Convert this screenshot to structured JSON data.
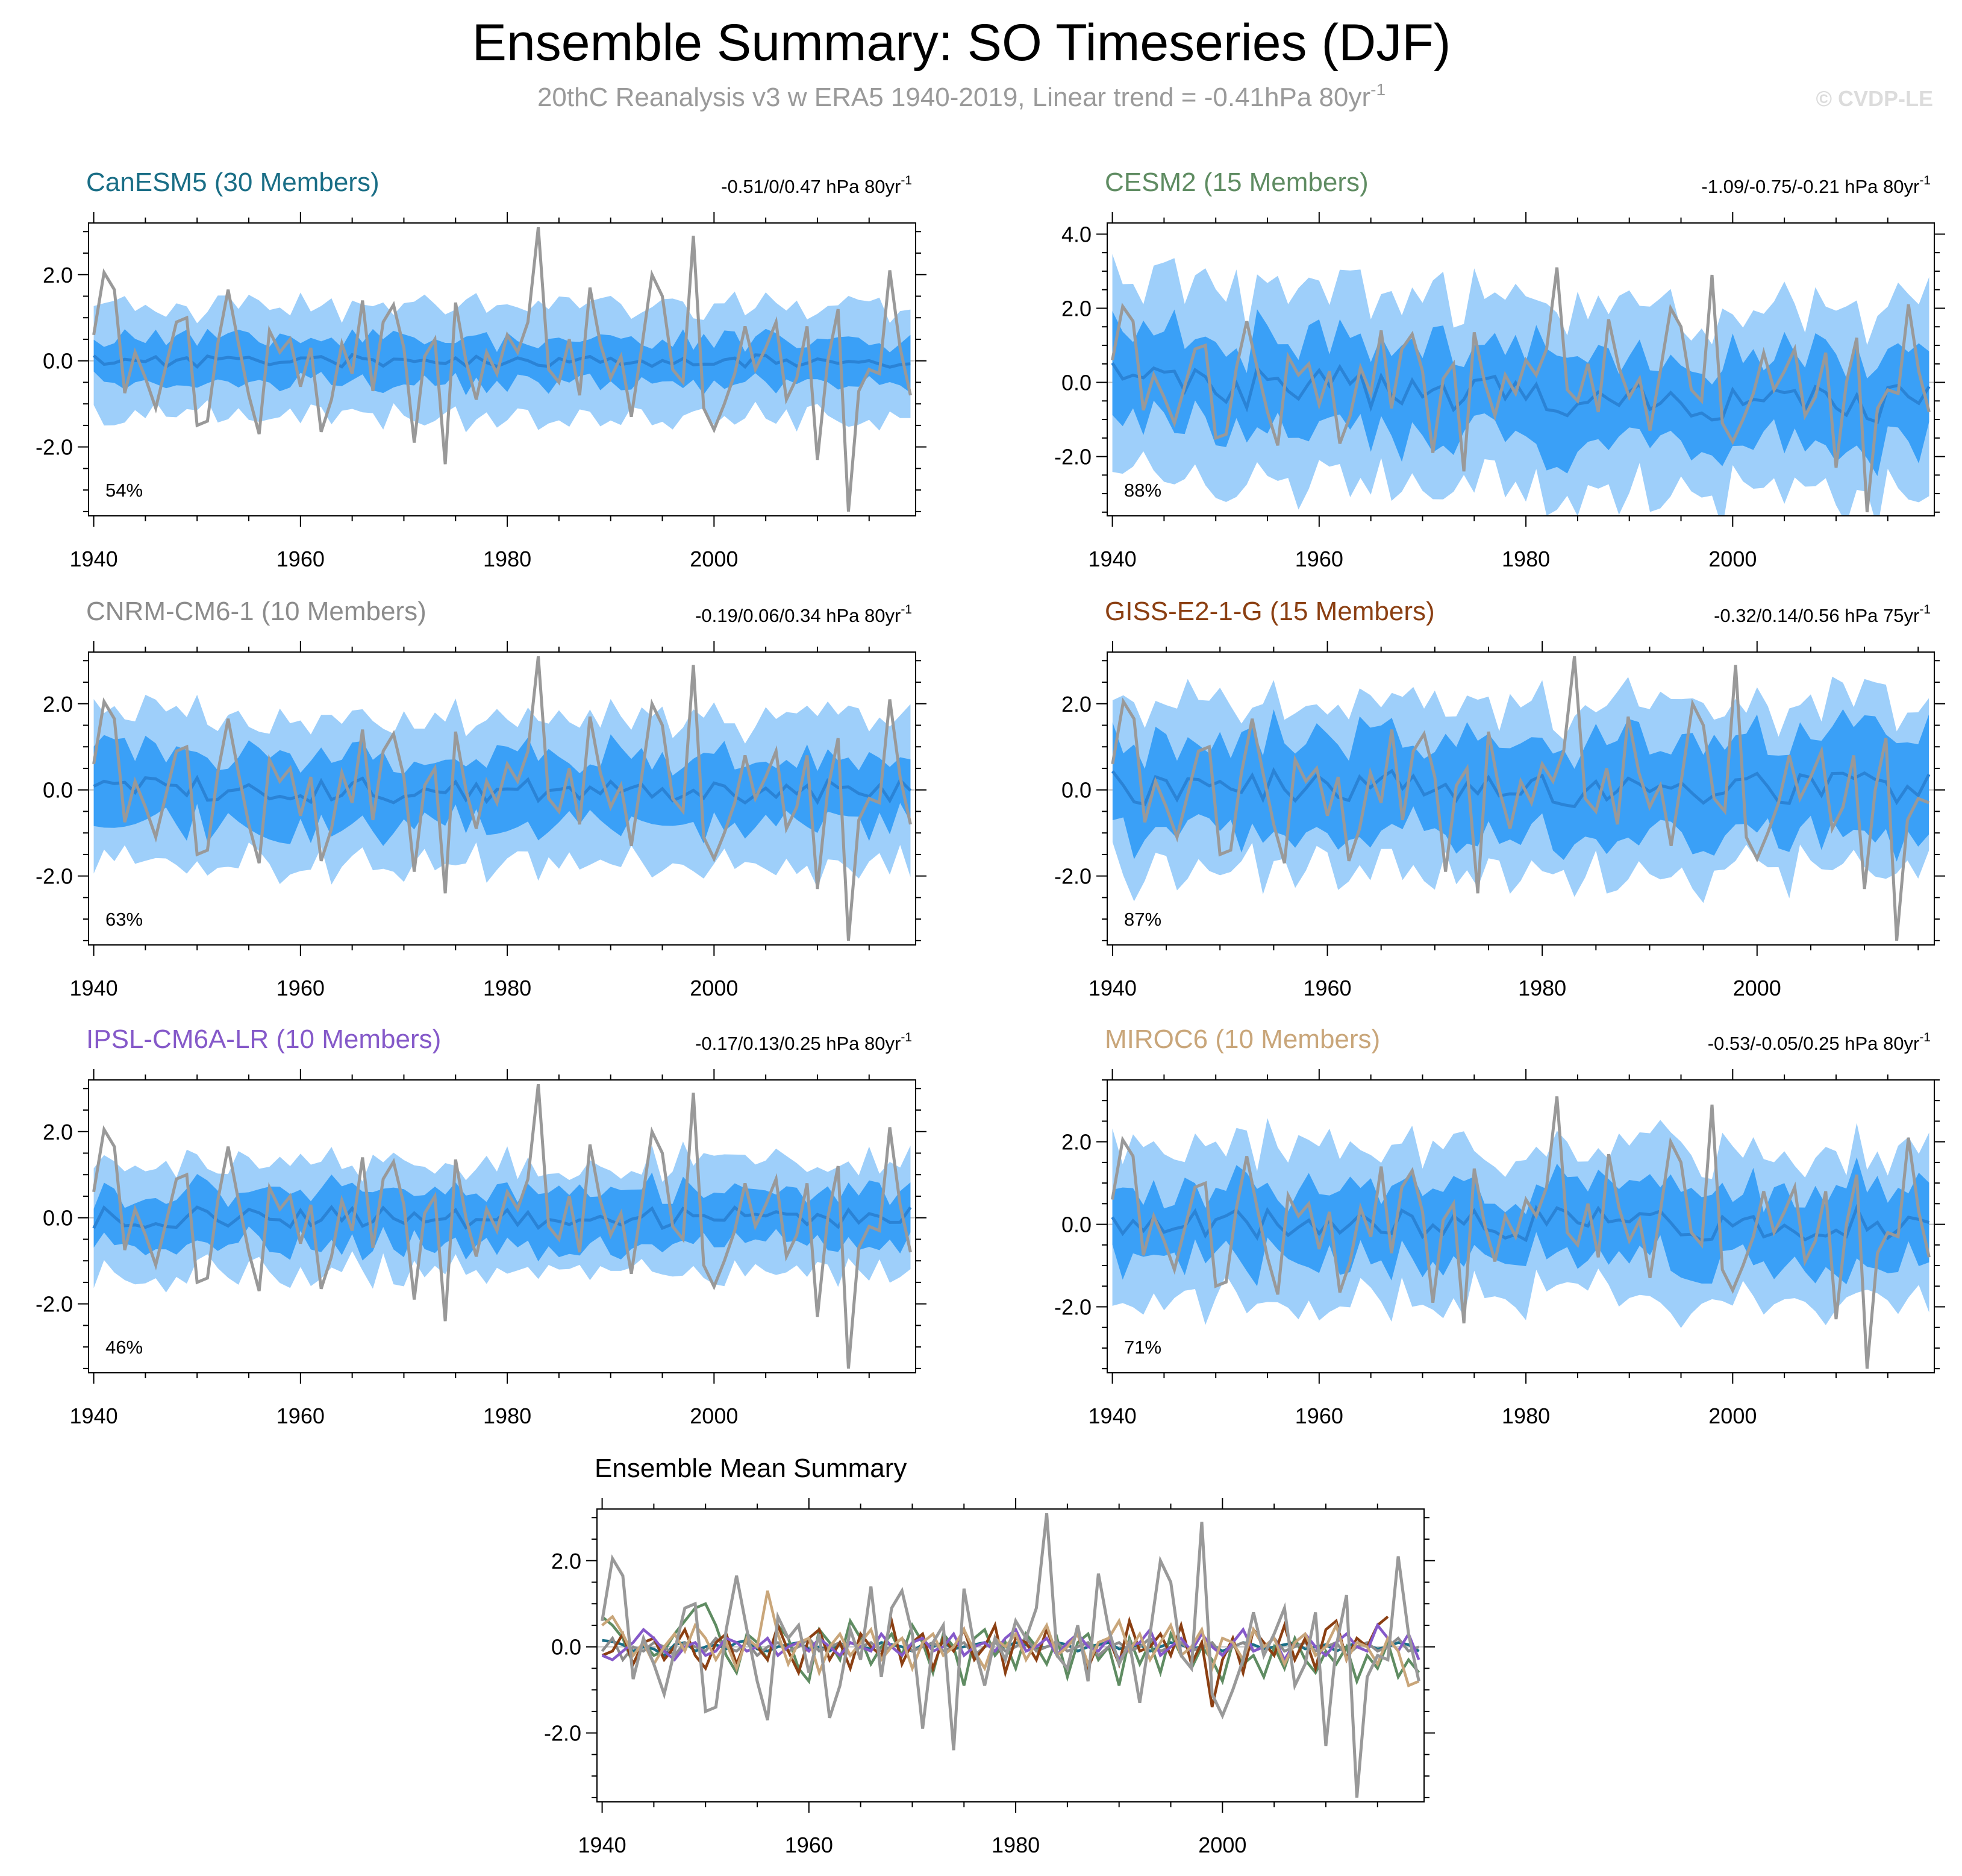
{
  "title": "Ensemble Summary: SO Timeseries (DJF)",
  "subtitle": "20thC Reanalysis v3 w ERA5 1940-2019, Linear trend = -0.41hPa 80yr",
  "subtitle_sup": "-1",
  "watermark": "© CVDP-LE",
  "colors": {
    "band_outer": "#9ecffa",
    "band_inner": "#3aa0f7",
    "mean_line": "#2a83d6",
    "obs_line": "#999999",
    "zero_line": "#c0c0c0"
  },
  "chart_data": [
    {
      "id": "canesm5",
      "type": "area",
      "title": "CanESM5 (30 Members)",
      "title_color": "#1a6e86",
      "trend": "-0.51/0/0.47 hPa 80yr",
      "trend_sup": "-1",
      "percent": "54%",
      "xlim": [
        1939.5,
        2019.5
      ],
      "ylim": [
        -3.6,
        3.2
      ],
      "ticks": [
        -2.0,
        0.0,
        2.0
      ],
      "xticks": [
        1940,
        1960,
        1980,
        2000
      ],
      "spread": [
        1.3,
        0.55,
        0.15
      ],
      "seed": 11
    },
    {
      "id": "cesm2",
      "type": "area",
      "title": "CESM2 (15 Members)",
      "title_color": "#5f8c62",
      "trend": "-1.09/-0.75/-0.21 hPa 80yr",
      "trend_sup": "-1",
      "percent": "88%",
      "xlim": [
        1939.5,
        2019.5
      ],
      "ylim": [
        -3.6,
        4.3
      ],
      "ticks": [
        -2.0,
        0.0,
        2.0,
        4.0
      ],
      "xticks": [
        1940,
        1960,
        1980,
        2000
      ],
      "spread": [
        2.6,
        1.3,
        0.6
      ],
      "seed": 23,
      "trend_slope": -0.0075
    },
    {
      "id": "cnrm",
      "type": "area",
      "title": "CNRM-CM6-1 (10 Members)",
      "title_color": "#8c8c8c",
      "trend": "-0.19/0.06/0.34 hPa 80yr",
      "trend_sup": "-1",
      "percent": "63%",
      "xlim": [
        1939.5,
        2019.5
      ],
      "ylim": [
        -3.6,
        3.2
      ],
      "ticks": [
        -2.0,
        0.0,
        2.0
      ],
      "xticks": [
        1940,
        1960,
        1980,
        2000
      ],
      "spread": [
        1.7,
        0.85,
        0.3
      ],
      "seed": 37
    },
    {
      "id": "giss",
      "type": "area",
      "title": "GISS-E2-1-G (15 Members)",
      "title_color": "#8b3f12",
      "trend": "-0.32/0.14/0.56 hPa 75yr",
      "trend_sup": "-1",
      "percent": "87%",
      "xlim": [
        1939.5,
        2016.5
      ],
      "ylim": [
        -3.6,
        3.2
      ],
      "ticks": [
        -2.0,
        0.0,
        2.0
      ],
      "xticks": [
        1940,
        1960,
        1980,
        2000
      ],
      "spread": [
        2.0,
        1.15,
        0.45
      ],
      "seed": 41
    },
    {
      "id": "ipsl",
      "type": "area",
      "title": "IPSL-CM6A-LR (10 Members)",
      "title_color": "#8559c9",
      "trend": "-0.17/0.13/0.25 hPa 80yr",
      "trend_sup": "-1",
      "percent": "46%",
      "xlim": [
        1939.5,
        2019.5
      ],
      "ylim": [
        -3.6,
        3.2
      ],
      "ticks": [
        -2.0,
        0.0,
        2.0
      ],
      "xticks": [
        1940,
        1960,
        1980,
        2000
      ],
      "spread": [
        1.3,
        0.65,
        0.25
      ],
      "seed": 53
    },
    {
      "id": "miroc6",
      "type": "area",
      "title": "MIROC6 (10 Members)",
      "title_color": "#c9a67a",
      "trend": "-0.53/-0.05/0.25 hPa 80yr",
      "trend_sup": "-1",
      "percent": "71%",
      "xlim": [
        1939.5,
        2019.5
      ],
      "ylim": [
        -3.6,
        3.5
      ],
      "ticks": [
        -2.0,
        0.0,
        2.0
      ],
      "xticks": [
        1940,
        1960,
        1980,
        2000
      ],
      "spread": [
        1.9,
        0.95,
        0.4
      ],
      "seed": 67
    },
    {
      "id": "summary",
      "type": "line",
      "title": "Ensemble Mean Summary",
      "title_color": "#000000",
      "xlim": [
        1939.5,
        2019.5
      ],
      "ylim": [
        -3.6,
        3.2
      ],
      "ticks": [
        -2.0,
        0.0,
        2.0
      ],
      "xticks": [
        1940,
        1960,
        1980,
        2000
      ]
    }
  ],
  "obs": {
    "name": "20thC Reanalysis v3 w ERA5",
    "x_start": 1940,
    "values": [
      0.6,
      2.05,
      1.65,
      -0.75,
      0.2,
      -0.4,
      -1.1,
      -0.1,
      0.9,
      1.0,
      -1.5,
      -1.4,
      0.4,
      1.65,
      0.4,
      -0.8,
      -1.7,
      0.7,
      0.2,
      0.5,
      -0.6,
      0.3,
      -1.65,
      -0.9,
      0.4,
      -0.3,
      1.4,
      -0.7,
      0.9,
      1.3,
      0.3,
      -1.9,
      0.1,
      0.5,
      -2.4,
      1.35,
      0.0,
      -0.9,
      0.2,
      -0.3,
      0.6,
      0.2,
      0.9,
      3.1,
      -0.2,
      -0.5,
      0.5,
      -0.8,
      1.7,
      0.4,
      -0.4,
      0.1,
      -1.3,
      0.3,
      2.0,
      1.5,
      -0.2,
      -0.5,
      2.9,
      -1.1,
      -1.6,
      -1.0,
      -0.3,
      0.8,
      -0.2,
      0.3,
      0.9,
      -0.9,
      -0.4,
      0.8,
      -2.3,
      0.0,
      1.2,
      -3.5,
      -0.7,
      -0.2,
      -0.3,
      2.1,
      0.3,
      -0.8
    ]
  },
  "summary_series": [
    {
      "name": "CanESM5",
      "color": "#1a6e86",
      "values": [
        0.15,
        0.12,
        0.05,
        -0.1,
        0.0,
        -0.05,
        -0.2,
        0.05,
        0.1,
        -0.1,
        0.0,
        0.05,
        -0.05,
        0.1,
        0.15,
        -0.05,
        -0.1,
        0.0,
        0.05,
        0.1,
        -0.05,
        0.0,
        -0.1,
        0.05,
        0.1,
        0.0,
        -0.05,
        0.1,
        0.05,
        0.0,
        -0.1,
        0.05,
        0.0,
        0.1,
        -0.05,
        0.0,
        0.05,
        0.1,
        -0.1,
        0.0,
        0.1,
        0.05,
        -0.05,
        0.0,
        0.1,
        0.05,
        -0.1,
        0.0,
        0.05,
        0.1,
        -0.05,
        0.0,
        0.05,
        -0.1,
        0.0,
        0.1,
        0.05,
        -0.05,
        0.0,
        0.05,
        -0.1,
        0.0,
        0.1,
        0.05,
        -0.05,
        0.0,
        0.05,
        0.1,
        -0.05,
        0.0,
        0.05,
        -0.1,
        0.0,
        0.1,
        0.05,
        -0.05,
        0.0,
        0.1,
        0.05,
        -0.1
      ]
    },
    {
      "name": "CESM2",
      "color": "#5f8c62",
      "values": [
        0.7,
        0.5,
        0.2,
        -0.4,
        0.1,
        -0.2,
        -0.1,
        0.3,
        0.6,
        0.9,
        1.0,
        0.5,
        -0.2,
        -0.6,
        0.3,
        0.1,
        -0.3,
        0.5,
        0.2,
        -0.5,
        -0.8,
        0.4,
        0.1,
        -0.3,
        0.6,
        0.2,
        -0.4,
        0.0,
        0.3,
        -0.2,
        0.5,
        0.1,
        -0.6,
        0.3,
        0.0,
        -0.9,
        0.2,
        0.4,
        -0.2,
        0.1,
        -0.5,
        0.3,
        0.0,
        -0.4,
        0.2,
        -0.7,
        0.1,
        0.3,
        -0.3,
        0.0,
        -0.9,
        0.2,
        -0.4,
        0.1,
        -0.6,
        0.3,
        -0.2,
        -0.5,
        0.0,
        -0.3,
        -0.8,
        0.1,
        -0.4,
        -0.2,
        -0.7,
        0.0,
        -0.5,
        0.2,
        -0.3,
        -0.6,
        -0.1,
        -0.4,
        0.0,
        -0.8,
        -0.2,
        -0.5,
        0.1,
        -0.7,
        -0.3,
        -0.6
      ]
    },
    {
      "name": "CNRM-CM6-1",
      "color": "#8c8c8c",
      "values": [
        -0.1,
        0.2,
        -0.3,
        0.0,
        -0.1,
        0.1,
        0.0,
        -0.2,
        0.1,
        0.0,
        -0.1,
        0.2,
        0.0,
        -0.1,
        0.1,
        -0.2,
        0.0,
        0.1,
        -0.1,
        0.0,
        0.2,
        -0.1,
        0.0,
        0.1,
        -0.2,
        0.0,
        0.1,
        -0.1,
        0.0,
        0.2,
        -0.1,
        0.0,
        0.1,
        -0.1,
        0.0,
        0.1,
        -0.2,
        0.0,
        0.1,
        -0.1,
        0.0,
        0.2,
        -0.1,
        0.0,
        0.1,
        -0.1,
        0.0,
        0.1,
        -0.2,
        0.0,
        0.1,
        -0.1,
        0.0,
        0.2,
        -0.1,
        0.0,
        0.1,
        -0.1,
        0.0,
        0.1,
        -0.2,
        0.0,
        0.1,
        -0.1,
        0.0,
        0.2,
        -0.1,
        0.0,
        0.1,
        -0.1,
        0.0,
        0.1,
        -0.2,
        0.0,
        0.1,
        -0.1,
        0.0,
        0.2,
        -0.1,
        0.0
      ]
    },
    {
      "name": "GISS-E2-1-G",
      "color": "#8b3f12",
      "values": [
        -0.2,
        -0.1,
        0.3,
        -0.4,
        0.1,
        0.2,
        -0.3,
        0.0,
        0.4,
        -0.2,
        -0.5,
        0.1,
        0.3,
        -0.4,
        0.2,
        0.0,
        -0.3,
        0.5,
        -0.1,
        -0.6,
        0.2,
        0.4,
        -0.3,
        0.1,
        -0.5,
        0.3,
        0.0,
        -0.2,
        0.6,
        -0.4,
        0.1,
        0.3,
        -0.5,
        0.2,
        -0.1,
        0.4,
        -0.3,
        0.0,
        0.5,
        -0.6,
        0.2,
        0.1,
        -0.3,
        0.4,
        -0.2,
        0.0,
        0.3,
        -0.5,
        0.1,
        0.2,
        -0.4,
        0.6,
        -0.1,
        0.0,
        0.3,
        -0.2,
        0.5,
        -0.4,
        0.1,
        -1.4,
        -0.3,
        0.2,
        -0.6,
        0.4,
        0.1,
        -0.2,
        0.5,
        -0.3,
        0.2,
        -0.5,
        0.4,
        0.6,
        -0.3,
        0.2,
        0.0,
        0.5,
        0.7
      ]
    },
    {
      "name": "IPSL-CM6A-LR",
      "color": "#8559c9",
      "values": [
        -0.2,
        -0.3,
        -0.1,
        0.1,
        0.4,
        0.2,
        -0.1,
        -0.3,
        0.0,
        0.1,
        -0.2,
        -0.1,
        0.2,
        0.1,
        -0.1,
        0.0,
        0.2,
        -0.2,
        0.0,
        0.1,
        -0.1,
        0.2,
        0.0,
        -0.2,
        0.1,
        0.0,
        -0.1,
        0.3,
        0.0,
        -0.2,
        0.1,
        0.2,
        -0.1,
        0.0,
        0.3,
        -0.2,
        0.0,
        0.1,
        -0.1,
        0.2,
        0.4,
        -0.1,
        0.0,
        0.2,
        -0.2,
        0.1,
        0.3,
        0.0,
        -0.1,
        0.2,
        -0.3,
        0.0,
        0.1,
        0.4,
        -0.2,
        0.0,
        0.2,
        -0.1,
        0.3,
        0.0,
        -0.2,
        0.1,
        0.4,
        -0.1,
        0.0,
        0.2,
        -0.3,
        0.1,
        0.3,
        0.0,
        -0.2,
        0.1,
        0.3,
        0.0,
        -0.1,
        0.5,
        0.2,
        -0.1,
        0.3,
        -0.3
      ]
    },
    {
      "name": "MIROC6",
      "color": "#c9a67a",
      "values": [
        0.5,
        0.7,
        0.3,
        -0.2,
        0.1,
        -0.4,
        0.0,
        0.3,
        -0.1,
        0.5,
        0.2,
        -0.3,
        0.1,
        -0.5,
        0.2,
        0.0,
        1.3,
        0.3,
        -0.4,
        0.1,
        0.2,
        -0.6,
        0.0,
        0.3,
        -0.2,
        0.1,
        0.4,
        -0.3,
        0.0,
        0.2,
        -0.5,
        0.1,
        0.3,
        -0.2,
        0.0,
        0.4,
        -0.1,
        -0.5,
        0.2,
        0.0,
        0.3,
        -0.3,
        0.1,
        0.5,
        -0.2,
        0.0,
        0.3,
        -0.4,
        0.1,
        0.2,
        0.6,
        -0.1,
        0.3,
        -0.3,
        0.1,
        0.5,
        -0.2,
        0.0,
        0.4,
        -0.5,
        0.2,
        0.1,
        -0.3,
        0.4,
        0.0,
        0.2,
        -0.4,
        0.1,
        0.3,
        -0.2,
        0.0,
        0.5,
        -0.3,
        0.1,
        0.0,
        -0.4,
        0.2,
        -0.1,
        -0.9,
        -0.8
      ]
    }
  ]
}
